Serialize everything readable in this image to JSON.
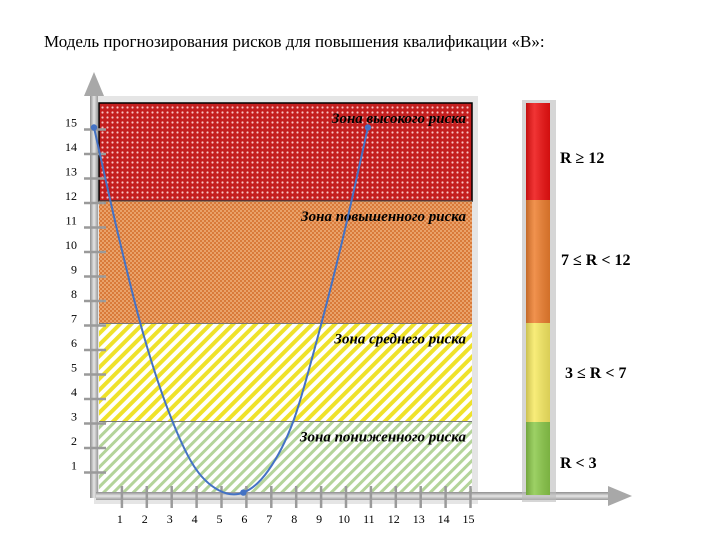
{
  "title": "Модель прогнозирования рисков для повышения квалификации «В»:",
  "chart_data": {
    "type": "line",
    "xlim": [
      0,
      15
    ],
    "ylim": [
      0,
      16
    ],
    "x_ticks": [
      "1",
      "2",
      "3",
      "4",
      "5",
      "6",
      "7",
      "8",
      "9",
      "10",
      "11",
      "12",
      "13",
      "14",
      "15"
    ],
    "y_ticks": [
      "1",
      "2",
      "3",
      "4",
      "5",
      "6",
      "7",
      "8",
      "9",
      "10",
      "11",
      "12",
      "13",
      "14",
      "15"
    ],
    "zones": [
      {
        "name": "Зона высокого риска",
        "from": 12,
        "to": 16,
        "color": "#e8262b"
      },
      {
        "name": "Зона повышенного риска",
        "from": 7,
        "to": 12,
        "color": "#e88a3a"
      },
      {
        "name": "Зона среднего риска",
        "from": 3,
        "to": 7,
        "color": "#f2ea1e"
      },
      {
        "name": "Зона пониженного риска",
        "from": 0,
        "to": 3,
        "color": "#a6cc86"
      }
    ],
    "series": [
      {
        "color": "#4472c4",
        "x": [
          0,
          1,
          2,
          3,
          4,
          5,
          6,
          7,
          8,
          9,
          10,
          11
        ],
        "y": [
          15,
          10.5,
          6.5,
          3.4,
          1.2,
          0.2,
          0.1,
          1.0,
          3.0,
          6.5,
          10.5,
          15
        ]
      }
    ],
    "legend": [
      {
        "label": "R  ≥  12",
        "color": "#ee1111"
      },
      {
        "label": "7 ≤  R < 12",
        "color": "#ee7f2f"
      },
      {
        "label": "3 ≤  R < 7",
        "color": "#f7ea62"
      },
      {
        "label": "R < 3",
        "color": "#8bc94a"
      }
    ]
  }
}
